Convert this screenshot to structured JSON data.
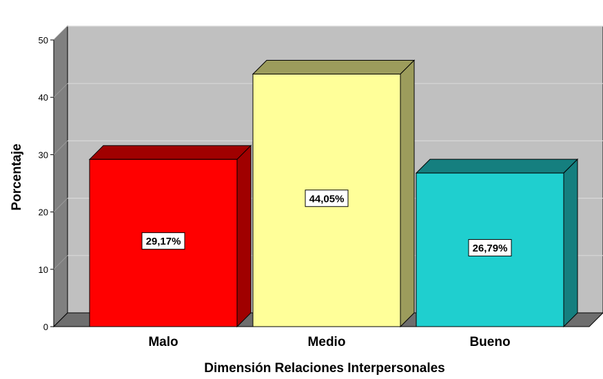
{
  "chart_data": {
    "type": "bar",
    "categories": [
      "Malo",
      "Medio",
      "Bueno"
    ],
    "values": [
      29.17,
      44.05,
      26.79
    ],
    "data_labels": [
      "29,17%",
      "44,05%",
      "26,79%"
    ],
    "xlabel": "Dimensión Relaciones Interpersonales",
    "ylabel": "Porcentaje",
    "ylim": [
      0,
      50
    ],
    "yticks": [
      0,
      10,
      20,
      30,
      40,
      50
    ],
    "grid": true,
    "style": "3d-bars",
    "colors": {
      "background_wall": "#c0c0c0",
      "side_wall": "#808080",
      "floor": "#6e6e6e",
      "gridline": "#d8d8d8",
      "bars": [
        {
          "front": "#ff0000",
          "top": "#a00000",
          "side": "#a00000"
        },
        {
          "front": "#ffff99",
          "top": "#9c9c5c",
          "side": "#9c9c5c"
        },
        {
          "front": "#1fcfcf",
          "top": "#157f7f",
          "side": "#157f7f"
        }
      ]
    }
  }
}
